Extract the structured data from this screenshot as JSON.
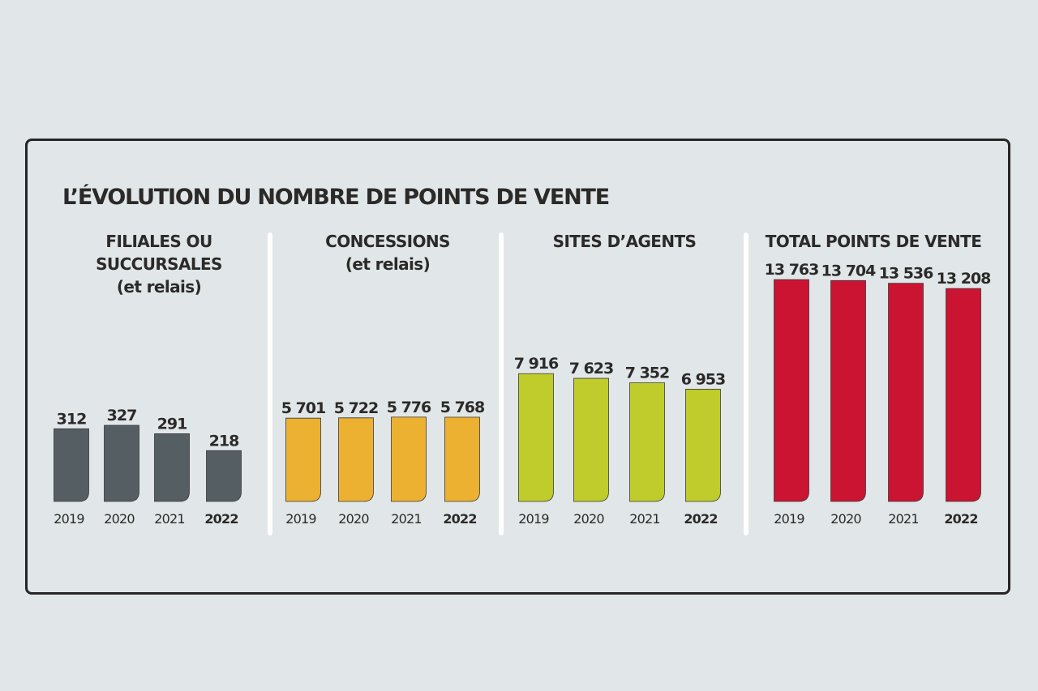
{
  "title": "L’ÉVOLUTION DU NOMBRE DE POINTS DE VENTE",
  "chart_data": [
    {
      "type": "bar",
      "title": "FILIALES OU SUCCURSALES",
      "subtitle": "(et relais)",
      "categories": [
        "2019",
        "2020",
        "2021",
        "2022"
      ],
      "values": [
        312,
        327,
        291,
        218
      ],
      "value_labels": [
        "312",
        "327",
        "291",
        "218"
      ],
      "highlight_category": "2022",
      "color": "#555e63"
    },
    {
      "type": "bar",
      "title": "CONCESSIONS",
      "subtitle": "(et relais)",
      "categories": [
        "2019",
        "2020",
        "2021",
        "2022"
      ],
      "values": [
        5701,
        5722,
        5776,
        5768
      ],
      "value_labels": [
        "5 701",
        "5 722",
        "5 776",
        "5 768"
      ],
      "highlight_category": "2022",
      "color": "#ecb131"
    },
    {
      "type": "bar",
      "title": "SITES D’AGENTS",
      "subtitle": "",
      "categories": [
        "2019",
        "2020",
        "2021",
        "2022"
      ],
      "values": [
        7916,
        7623,
        7352,
        6953
      ],
      "value_labels": [
        "7 916",
        "7 623",
        "7 352",
        "6 953"
      ],
      "highlight_category": "2022",
      "color": "#bfcc2b"
    },
    {
      "type": "bar",
      "title": "TOTAL POINTS DE VENTE",
      "subtitle": "",
      "categories": [
        "2019",
        "2020",
        "2021",
        "2022"
      ],
      "values": [
        13763,
        13704,
        13536,
        13208
      ],
      "value_labels": [
        "13 763",
        "13 704",
        "13 536",
        "13 208"
      ],
      "highlight_category": "2022",
      "color": "#cb1432"
    }
  ]
}
